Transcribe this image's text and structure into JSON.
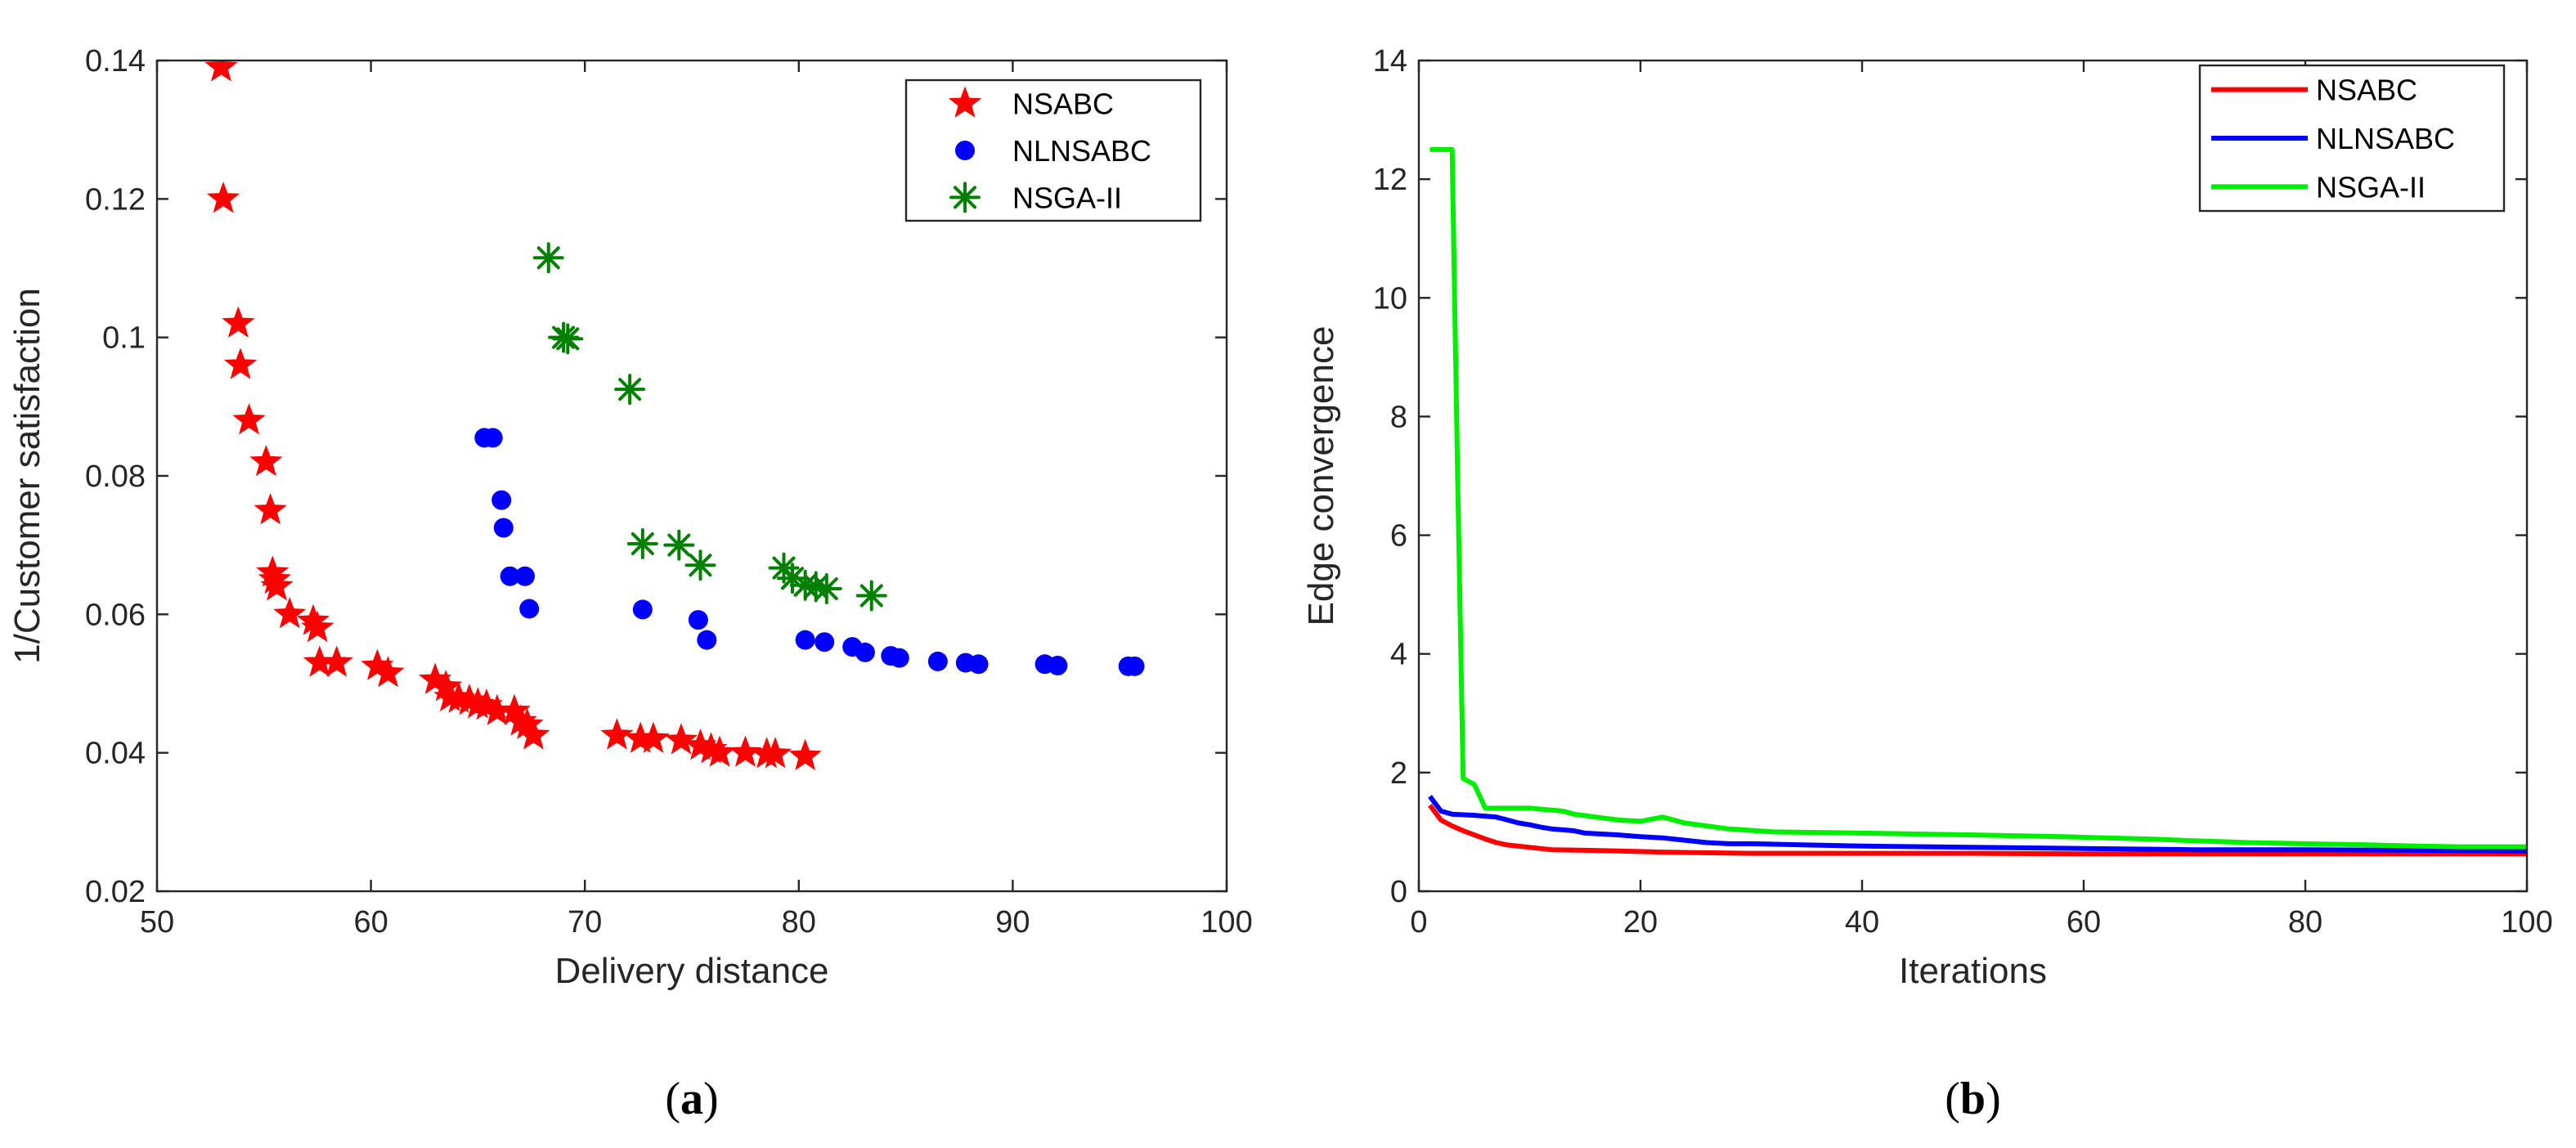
{
  "chart_data": [
    {
      "type": "scatter",
      "panel": "a",
      "caption": "(a)",
      "caption_letter": "a",
      "xlabel": "Delivery distance",
      "ylabel": "1/Customer satisfaction",
      "xlim": [
        50,
        100
      ],
      "ylim": [
        0.02,
        0.14
      ],
      "xticks": [
        50,
        60,
        70,
        80,
        90,
        100
      ],
      "yticks": [
        0.02,
        0.04,
        0.06,
        0.08,
        0.1,
        0.12,
        0.14
      ],
      "xtick_labels": [
        "50",
        "60",
        "70",
        "80",
        "90",
        "100"
      ],
      "ytick_labels": [
        "0.02",
        "0.04",
        "0.06",
        "0.08",
        "0.1",
        "0.12",
        "0.14"
      ],
      "grid": false,
      "legend": "top-right",
      "series": [
        {
          "name": "NSABC",
          "marker": "star",
          "color": "#ff0000",
          "x": [
            53.0,
            53.1,
            53.8,
            53.9,
            54.3,
            55.1,
            55.3,
            55.4,
            55.5,
            55.6,
            56.2,
            57.3,
            57.5,
            57.6,
            58.4,
            60.3,
            60.8,
            63.0,
            63.5,
            63.7,
            64.1,
            64.6,
            65.0,
            65.4,
            65.9,
            66.7,
            67.0,
            67.3,
            67.6,
            71.5,
            72.6,
            73.2,
            74.5,
            75.4,
            75.9,
            76.3,
            77.5,
            78.5,
            78.9,
            80.3
          ],
          "y": [
            0.139,
            0.12,
            0.102,
            0.096,
            0.088,
            0.082,
            0.075,
            0.066,
            0.065,
            0.064,
            0.06,
            0.059,
            0.058,
            0.053,
            0.053,
            0.0525,
            0.0515,
            0.0505,
            0.0495,
            0.048,
            0.0478,
            0.0475,
            0.047,
            0.0468,
            0.046,
            0.046,
            0.0445,
            0.044,
            0.0425,
            0.0425,
            0.042,
            0.042,
            0.0418,
            0.041,
            0.0405,
            0.04,
            0.04,
            0.0398,
            0.0398,
            0.0395
          ]
        },
        {
          "name": "NLNSABC",
          "marker": "circle",
          "color": "#0000ff",
          "x": [
            65.3,
            65.7,
            66.1,
            66.2,
            66.5,
            67.2,
            67.4,
            72.7,
            75.3,
            75.7,
            80.3,
            81.2,
            82.5,
            83.1,
            84.3,
            84.7,
            86.5,
            87.8,
            88.4,
            91.5,
            92.1,
            95.4,
            95.7
          ],
          "y": [
            0.0855,
            0.0855,
            0.0765,
            0.0725,
            0.0655,
            0.0655,
            0.0608,
            0.0607,
            0.0592,
            0.0563,
            0.0563,
            0.056,
            0.0553,
            0.0545,
            0.054,
            0.0537,
            0.0532,
            0.053,
            0.0528,
            0.0528,
            0.0526,
            0.0525,
            0.0525
          ]
        },
        {
          "name": "NSGA-II",
          "marker": "asterisk",
          "color": "#008000",
          "x": [
            68.3,
            69.0,
            69.2,
            72.1,
            72.7,
            74.4,
            75.4,
            79.3,
            79.7,
            80.3,
            80.8,
            81.3,
            83.4
          ],
          "y": [
            0.1115,
            0.1,
            0.0998,
            0.0925,
            0.0702,
            0.07,
            0.0671,
            0.0667,
            0.0652,
            0.0642,
            0.064,
            0.0637,
            0.0627
          ]
        }
      ]
    },
    {
      "type": "line",
      "panel": "b",
      "caption": "(b)",
      "caption_letter": "b",
      "xlabel": "Iterations",
      "ylabel": "Edge convergence",
      "xlim": [
        0,
        100
      ],
      "ylim": [
        0,
        14
      ],
      "xticks": [
        0,
        20,
        40,
        60,
        80,
        100
      ],
      "yticks": [
        0,
        2,
        4,
        6,
        8,
        10,
        12,
        14
      ],
      "xtick_labels": [
        "0",
        "20",
        "40",
        "60",
        "80",
        "100"
      ],
      "ytick_labels": [
        "0",
        "2",
        "4",
        "6",
        "8",
        "10",
        "12",
        "14"
      ],
      "grid": false,
      "legend": "top-right",
      "series": [
        {
          "name": "NSABC",
          "color": "#ff0000",
          "x": [
            1,
            2,
            3,
            4,
            5,
            6,
            7,
            8,
            10,
            12,
            15,
            18,
            22,
            25,
            30,
            40,
            50,
            60,
            70,
            80,
            90,
            100
          ],
          "y": [
            1.45,
            1.2,
            1.1,
            1.02,
            0.95,
            0.88,
            0.82,
            0.78,
            0.74,
            0.7,
            0.69,
            0.68,
            0.66,
            0.65,
            0.64,
            0.64,
            0.64,
            0.63,
            0.63,
            0.63,
            0.63,
            0.63
          ]
        },
        {
          "name": "NLNSABC",
          "color": "#0000ff",
          "x": [
            1,
            2,
            3,
            5,
            7,
            8,
            9,
            10,
            11,
            12,
            14,
            15,
            18,
            20,
            22,
            24,
            26,
            28,
            30,
            35,
            40,
            50,
            60,
            70,
            80,
            90,
            100
          ],
          "y": [
            1.6,
            1.35,
            1.3,
            1.28,
            1.25,
            1.2,
            1.15,
            1.12,
            1.08,
            1.05,
            1.02,
            0.98,
            0.95,
            0.92,
            0.9,
            0.86,
            0.82,
            0.8,
            0.8,
            0.78,
            0.76,
            0.74,
            0.72,
            0.7,
            0.7,
            0.69,
            0.68
          ]
        },
        {
          "name": "NSGA-II",
          "color": "#00ee00",
          "x": [
            1,
            2,
            3,
            3.5,
            4,
            5,
            6,
            10,
            13,
            14,
            16,
            18,
            20,
            22,
            24,
            26,
            28,
            32,
            40,
            50,
            58,
            62,
            66,
            70,
            75,
            80,
            86,
            90,
            94,
            100
          ],
          "y": [
            12.5,
            12.5,
            12.5,
            7.0,
            1.9,
            1.8,
            1.4,
            1.4,
            1.35,
            1.3,
            1.25,
            1.2,
            1.18,
            1.25,
            1.15,
            1.1,
            1.05,
            1.0,
            0.98,
            0.95,
            0.92,
            0.9,
            0.88,
            0.85,
            0.82,
            0.8,
            0.78,
            0.76,
            0.75,
            0.75
          ]
        }
      ]
    }
  ]
}
